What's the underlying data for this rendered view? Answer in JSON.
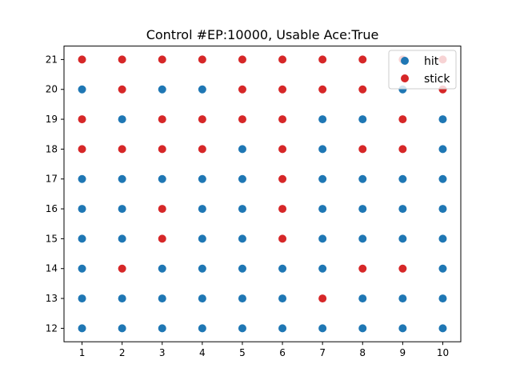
{
  "chart_data": {
    "type": "scatter",
    "title": "Control #EP:10000, Usable Ace:True",
    "xlabel": "",
    "ylabel": "",
    "xlim": [
      0.55,
      10.45
    ],
    "ylim": [
      11.55,
      21.45
    ],
    "x_ticks": [
      1,
      2,
      3,
      4,
      5,
      6,
      7,
      8,
      9,
      10
    ],
    "y_ticks": [
      12,
      13,
      14,
      15,
      16,
      17,
      18,
      19,
      20,
      21
    ],
    "grid": false,
    "legend_position": "top-right",
    "colors": {
      "hit": "#1f77b4",
      "stick": "#d62728"
    },
    "x": [
      1,
      2,
      3,
      4,
      5,
      6,
      7,
      8,
      9,
      10
    ],
    "y": [
      12,
      13,
      14,
      15,
      16,
      17,
      18,
      19,
      20,
      21
    ],
    "actions_by_y": {
      "21": [
        "stick",
        "stick",
        "stick",
        "stick",
        "stick",
        "stick",
        "stick",
        "stick",
        "stick",
        "stick"
      ],
      "20": [
        "hit",
        "stick",
        "hit",
        "hit",
        "stick",
        "stick",
        "stick",
        "stick",
        "hit",
        "stick"
      ],
      "19": [
        "stick",
        "hit",
        "stick",
        "stick",
        "stick",
        "stick",
        "hit",
        "hit",
        "stick",
        "hit"
      ],
      "18": [
        "stick",
        "stick",
        "stick",
        "stick",
        "hit",
        "stick",
        "hit",
        "stick",
        "stick",
        "hit"
      ],
      "17": [
        "hit",
        "hit",
        "hit",
        "hit",
        "hit",
        "stick",
        "hit",
        "hit",
        "hit",
        "hit"
      ],
      "16": [
        "hit",
        "hit",
        "stick",
        "hit",
        "hit",
        "stick",
        "hit",
        "hit",
        "hit",
        "hit"
      ],
      "15": [
        "hit",
        "hit",
        "stick",
        "hit",
        "hit",
        "stick",
        "hit",
        "hit",
        "hit",
        "hit"
      ],
      "14": [
        "hit",
        "stick",
        "hit",
        "hit",
        "hit",
        "hit",
        "hit",
        "stick",
        "stick",
        "hit"
      ],
      "13": [
        "hit",
        "hit",
        "hit",
        "hit",
        "hit",
        "hit",
        "stick",
        "hit",
        "hit",
        "hit"
      ],
      "12": [
        "hit",
        "hit",
        "hit",
        "hit",
        "hit",
        "hit",
        "hit",
        "hit",
        "hit",
        "hit"
      ]
    },
    "series": [
      {
        "name": "hit"
      },
      {
        "name": "stick"
      }
    ]
  }
}
